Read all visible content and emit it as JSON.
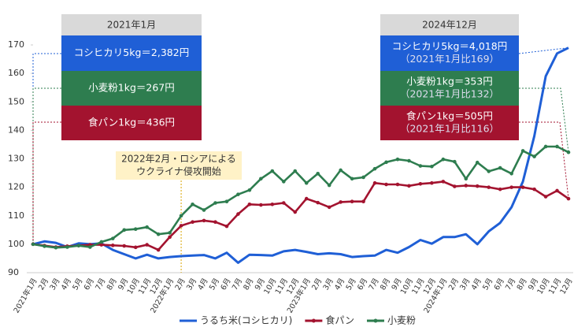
{
  "chart_data": {
    "type": "line",
    "categories": [
      "2021年1月",
      "2月",
      "3月",
      "4月",
      "5月",
      "6月",
      "7月",
      "8月",
      "9月",
      "10月",
      "11月",
      "12月",
      "2022年1月",
      "2月",
      "3月",
      "4月",
      "5月",
      "6月",
      "7月",
      "8月",
      "9月",
      "10月",
      "11月",
      "12月",
      "2023年1月",
      "2月",
      "3月",
      "4月",
      "5月",
      "6月",
      "7月",
      "8月",
      "9月",
      "10月",
      "11月",
      "12月",
      "2024年1月",
      "2月",
      "3月",
      "4月",
      "5月",
      "6月",
      "7月",
      "8月",
      "9月",
      "10月",
      "11月",
      "12月"
    ],
    "series": [
      {
        "name": "うるち米(コシヒカリ)",
        "color": "#1f5fd6",
        "values": [
          100,
          101,
          100.5,
          99,
          100.3,
          100,
          100.3,
          98,
          96.5,
          95,
          96.3,
          95,
          95.5,
          95.8,
          96,
          96.2,
          95,
          97,
          93.5,
          96.3,
          96.2,
          96,
          97.5,
          98,
          97.3,
          96.5,
          96.8,
          96.5,
          95.5,
          95.8,
          96,
          98,
          97,
          99,
          101.5,
          100.2,
          102.5,
          102.5,
          103.5,
          100,
          104.5,
          107.5,
          113,
          122,
          138,
          159,
          167,
          169
        ]
      },
      {
        "name": "食パン",
        "color": "#a3132f",
        "values": [
          100,
          99.5,
          99,
          99.3,
          99.5,
          99.8,
          99.8,
          99.6,
          99.4,
          98.9,
          99.8,
          98,
          102.5,
          106.5,
          107.8,
          108.3,
          107.8,
          106.3,
          110.6,
          114,
          113.8,
          114,
          114.5,
          111.3,
          116,
          114.6,
          113,
          114.8,
          115,
          115,
          121.5,
          121,
          121,
          120.5,
          121.2,
          121.5,
          122,
          120.3,
          120.6,
          120.4,
          120,
          119.3,
          120,
          120,
          119.3,
          116.7,
          118.8,
          116
        ]
      },
      {
        "name": "小麦粉",
        "color": "#2e7d4f",
        "values": [
          100,
          99.3,
          98.8,
          99,
          99.5,
          99,
          100.8,
          102,
          105,
          105.3,
          106,
          103.5,
          104,
          110,
          114,
          112,
          114.5,
          115,
          117.5,
          119,
          123,
          125.7,
          122,
          125.7,
          121.5,
          124.8,
          120.7,
          126,
          123,
          123.5,
          126.5,
          128.8,
          129.8,
          129.3,
          127.5,
          127.3,
          129.8,
          129,
          123,
          128.7,
          125.6,
          126.8,
          124.8,
          132.8,
          130.8,
          134.3,
          134.3,
          132.3
        ]
      }
    ],
    "ylim": [
      90,
      170
    ],
    "yticks": [
      90,
      100,
      110,
      120,
      130,
      140,
      150,
      160,
      170
    ],
    "grid": false,
    "legend": "bottom",
    "annotations": [
      {
        "header": "2021年1月",
        "items": [
          {
            "text": "コシヒカリ5kg＝2,382円"
          },
          {
            "text": "小麦粉1kg＝267円"
          },
          {
            "text": "食パン1kg＝436円"
          }
        ]
      },
      {
        "header": "2024年12月",
        "items": [
          {
            "text": "コシヒカリ5kg＝4,018円",
            "note": "（2021年1月比169）"
          },
          {
            "text": "小麦粉1kg＝353円",
            "note": "（2021年1月比132）"
          },
          {
            "text": "食パン1kg＝505円",
            "note": "（2021年1月比116）"
          }
        ]
      }
    ],
    "event": {
      "lines": [
        "2022年2月・ロシアによる",
        "ウクライナ侵攻開始"
      ]
    }
  }
}
